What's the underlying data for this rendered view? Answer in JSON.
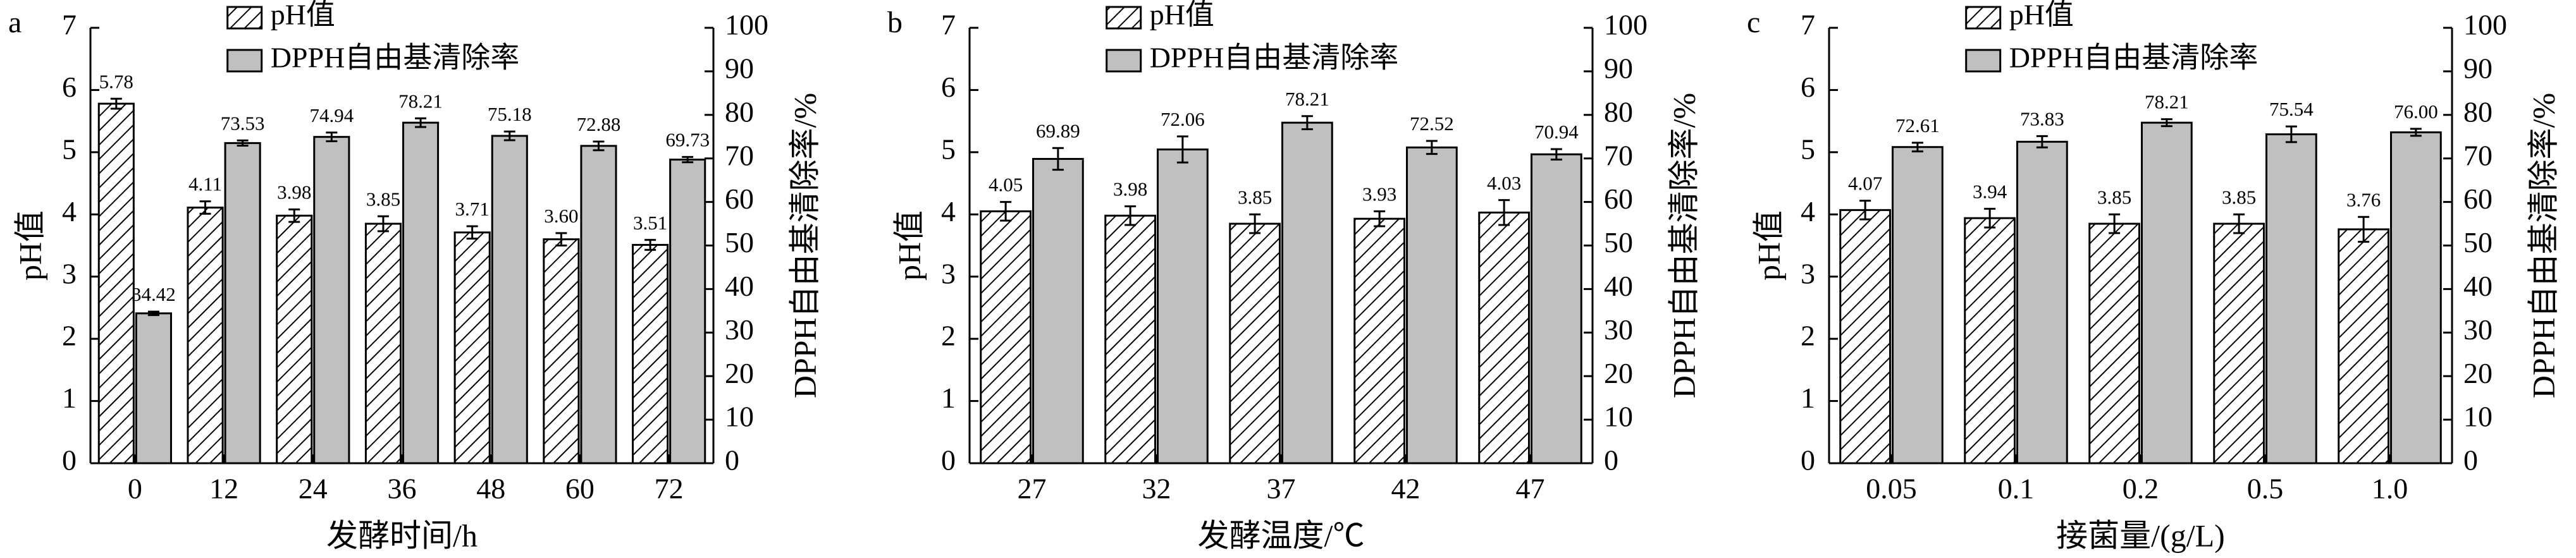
{
  "chart_data": [
    {
      "type": "bar",
      "panel_label": "a",
      "xlabel": "发酵时间/h",
      "ylabel": "pH值",
      "y2label": "DPPH自由基清除率/%",
      "categories": [
        "0",
        "12",
        "24",
        "36",
        "48",
        "60",
        "72"
      ],
      "series": [
        {
          "name": "pH值",
          "color": "#000000",
          "hatch": "///",
          "values": [
            5.78,
            4.11,
            3.98,
            3.85,
            3.71,
            3.6,
            3.51
          ],
          "value_labels": [
            "5.78",
            "4.11",
            "3.98",
            "3.85",
            "3.71",
            "3.60",
            "3.51"
          ],
          "errors": [
            0.08,
            0.1,
            0.1,
            0.12,
            0.1,
            0.1,
            0.08
          ]
        },
        {
          "name": "DPPH自由基清除率",
          "color": "#c0c0c0",
          "axis": "y2",
          "values": [
            34.42,
            73.53,
            74.94,
            78.21,
            75.18,
            72.88,
            69.73
          ],
          "value_labels": [
            "34.42",
            "73.53",
            "74.94",
            "78.21",
            "75.18",
            "72.88",
            "69.73"
          ],
          "errors": [
            0.4,
            0.6,
            1,
            1,
            1,
            1,
            0.6
          ]
        }
      ],
      "ylim": [
        0,
        7
      ],
      "yticks": [
        0,
        1,
        2,
        3,
        4,
        5,
        6,
        7
      ],
      "y2lim": [
        0,
        100
      ],
      "y2ticks": [
        0,
        10,
        20,
        30,
        40,
        50,
        60,
        70,
        80,
        90,
        100
      ],
      "legend": "upper left"
    },
    {
      "type": "bar",
      "panel_label": "b",
      "xlabel": "发酵温度/℃",
      "ylabel": "pH值",
      "y2label": "DPPH自由基清除率/%",
      "categories": [
        "27",
        "32",
        "37",
        "42",
        "47"
      ],
      "series": [
        {
          "name": "pH值",
          "color": "#000000",
          "hatch": "///",
          "values": [
            4.05,
            3.98,
            3.85,
            3.93,
            4.03
          ],
          "value_labels": [
            "4.05",
            "3.98",
            "3.85",
            "3.93",
            "4.03"
          ],
          "errors": [
            0.15,
            0.15,
            0.15,
            0.12,
            0.2
          ]
        },
        {
          "name": "DPPH自由基清除率",
          "color": "#c0c0c0",
          "axis": "y2",
          "values": [
            69.89,
            72.06,
            78.21,
            72.52,
            70.94
          ],
          "value_labels": [
            "69.89",
            "72.06",
            "78.21",
            "72.52",
            "70.94"
          ],
          "errors": [
            2.5,
            3,
            1.5,
            1.5,
            1.2
          ]
        }
      ],
      "ylim": [
        0,
        7
      ],
      "yticks": [
        0,
        1,
        2,
        3,
        4,
        5,
        6,
        7
      ],
      "y2lim": [
        0,
        100
      ],
      "y2ticks": [
        0,
        10,
        20,
        30,
        40,
        50,
        60,
        70,
        80,
        90,
        100
      ],
      "legend": "upper left"
    },
    {
      "type": "bar",
      "panel_label": "c",
      "xlabel": "接菌量/(g/L)",
      "ylabel": "pH值",
      "y2label": "DPPH自由基清除率/%",
      "categories": [
        "0.05",
        "0.1",
        "0.2",
        "0.5",
        "1.0"
      ],
      "series": [
        {
          "name": "pH值",
          "color": "#000000",
          "hatch": "///",
          "values": [
            4.07,
            3.94,
            3.85,
            3.85,
            3.76
          ],
          "value_labels": [
            "4.07",
            "3.94",
            "3.85",
            "3.85",
            "3.76"
          ],
          "errors": [
            0.15,
            0.15,
            0.15,
            0.15,
            0.2
          ]
        },
        {
          "name": "DPPH自由基清除率",
          "color": "#c0c0c0",
          "axis": "y2",
          "values": [
            72.61,
            73.83,
            78.21,
            75.54,
            76.0
          ],
          "value_labels": [
            "72.61",
            "73.83",
            "78.21",
            "75.54",
            "76.00"
          ],
          "errors": [
            1,
            1.3,
            0.8,
            1.8,
            0.8
          ]
        }
      ],
      "ylim": [
        0,
        7
      ],
      "yticks": [
        0,
        1,
        2,
        3,
        4,
        5,
        6,
        7
      ],
      "y2lim": [
        0,
        100
      ],
      "y2ticks": [
        0,
        10,
        20,
        30,
        40,
        50,
        60,
        70,
        80,
        90,
        100
      ],
      "legend": "upper left"
    }
  ]
}
